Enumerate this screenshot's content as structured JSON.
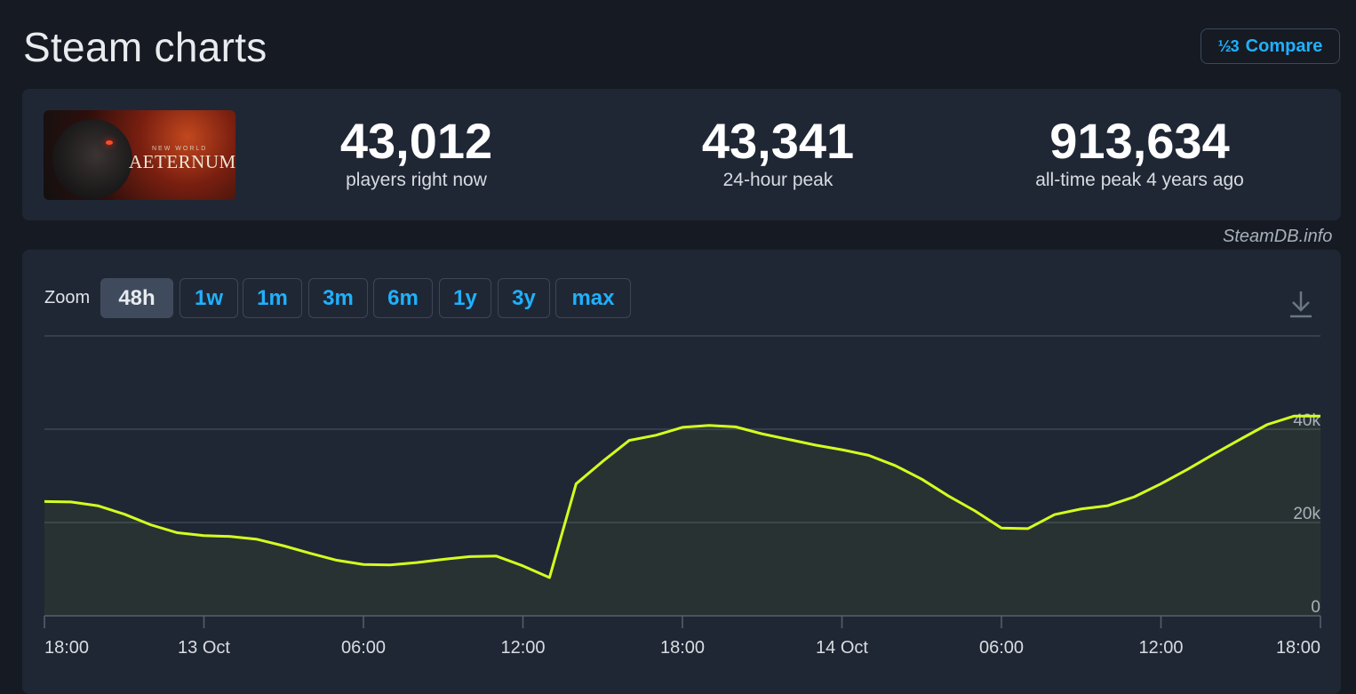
{
  "page_title": "Steam charts",
  "compare": {
    "label": "Compare",
    "icon": "compare-icon"
  },
  "game": {
    "name": "New World: Aeternum",
    "logo_small": "NEW WORLD",
    "logo_text": "AETERNUM"
  },
  "stats": [
    {
      "value": "43,012",
      "label": "players right now"
    },
    {
      "value": "43,341",
      "label": "24-hour peak"
    },
    {
      "value": "913,634",
      "label": "all-time peak 4 years ago"
    }
  ],
  "watermark": "SteamDB.info",
  "zoom": {
    "label": "Zoom",
    "options": [
      "48h",
      "1w",
      "1m",
      "3m",
      "6m",
      "1y",
      "3y",
      "max"
    ],
    "selected": "48h"
  },
  "download_icon": "download-icon",
  "colors": {
    "line": "#d4ff1f",
    "accent": "#1fb1ff",
    "background": "#161a22",
    "panel": "#202734"
  },
  "chart_data": {
    "type": "area",
    "x_tick_labels": [
      "18:00",
      "13 Oct",
      "06:00",
      "12:00",
      "18:00",
      "14 Oct",
      "06:00",
      "12:00",
      "18:00"
    ],
    "y_tick_labels": [
      "0",
      "20k",
      "40k"
    ],
    "ylim": [
      0,
      60000
    ],
    "grid": true,
    "series": [
      {
        "hours": [
          0,
          1,
          2,
          3,
          4,
          5,
          6,
          7,
          8,
          9,
          10,
          11,
          12,
          13,
          14,
          15,
          16,
          17,
          18,
          19,
          20,
          21,
          22,
          23,
          24,
          25,
          26,
          27,
          28,
          29,
          30,
          31,
          32,
          33,
          34,
          35,
          36,
          37,
          38,
          39,
          40,
          41,
          42,
          43,
          44,
          45,
          46,
          47,
          48
        ],
        "values": [
          24500,
          24400,
          23600,
          21800,
          19500,
          17800,
          17200,
          17000,
          16400,
          15000,
          13400,
          11900,
          11000,
          10900,
          11400,
          12100,
          12700,
          12800,
          10700,
          8200,
          28300,
          33100,
          37600,
          38700,
          40400,
          40800,
          40500,
          39000,
          37800,
          36600,
          35600,
          34400,
          32200,
          29300,
          25700,
          22500,
          18800,
          18700,
          21700,
          22900,
          23600,
          25500,
          28300,
          31400,
          34700,
          37900,
          41000,
          42800,
          42800
        ]
      }
    ]
  }
}
